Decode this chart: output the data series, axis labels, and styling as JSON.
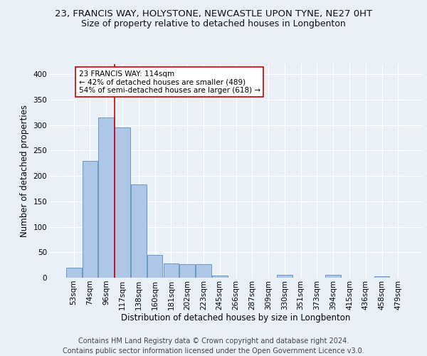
{
  "title_line1": "23, FRANCIS WAY, HOLYSTONE, NEWCASTLE UPON TYNE, NE27 0HT",
  "title_line2": "Size of property relative to detached houses in Longbenton",
  "xlabel": "Distribution of detached houses by size in Longbenton",
  "ylabel": "Number of detached properties",
  "categories": [
    "53sqm",
    "74sqm",
    "96sqm",
    "117sqm",
    "138sqm",
    "160sqm",
    "181sqm",
    "202sqm",
    "223sqm",
    "245sqm",
    "266sqm",
    "287sqm",
    "309sqm",
    "330sqm",
    "351sqm",
    "373sqm",
    "394sqm",
    "415sqm",
    "436sqm",
    "458sqm",
    "479sqm"
  ],
  "values": [
    20,
    230,
    315,
    295,
    183,
    45,
    28,
    27,
    27,
    4,
    0,
    0,
    0,
    5,
    0,
    0,
    5,
    0,
    0,
    3,
    0
  ],
  "bar_color": "#aec6e8",
  "bar_edge_color": "#5a8fc0",
  "vline_x_index": 3,
  "vline_color": "#cc0000",
  "annotation_text": "23 FRANCIS WAY: 114sqm\n← 42% of detached houses are smaller (489)\n54% of semi-detached houses are larger (618) →",
  "annotation_box_color": "#ffffff",
  "annotation_box_edge": "#cc0000",
  "footer_line1": "Contains HM Land Registry data © Crown copyright and database right 2024.",
  "footer_line2": "Contains public sector information licensed under the Open Government Licence v3.0.",
  "ylim": [
    0,
    420
  ],
  "bg_color": "#eaf0f8",
  "plot_bg_color": "#eaf0f8",
  "grid_color": "#ffffff",
  "title1_fontsize": 9.5,
  "title2_fontsize": 9,
  "tick_fontsize": 7.5,
  "ylabel_fontsize": 8.5,
  "xlabel_fontsize": 8.5,
  "footer_fontsize": 7,
  "annotation_fontsize": 7.5
}
